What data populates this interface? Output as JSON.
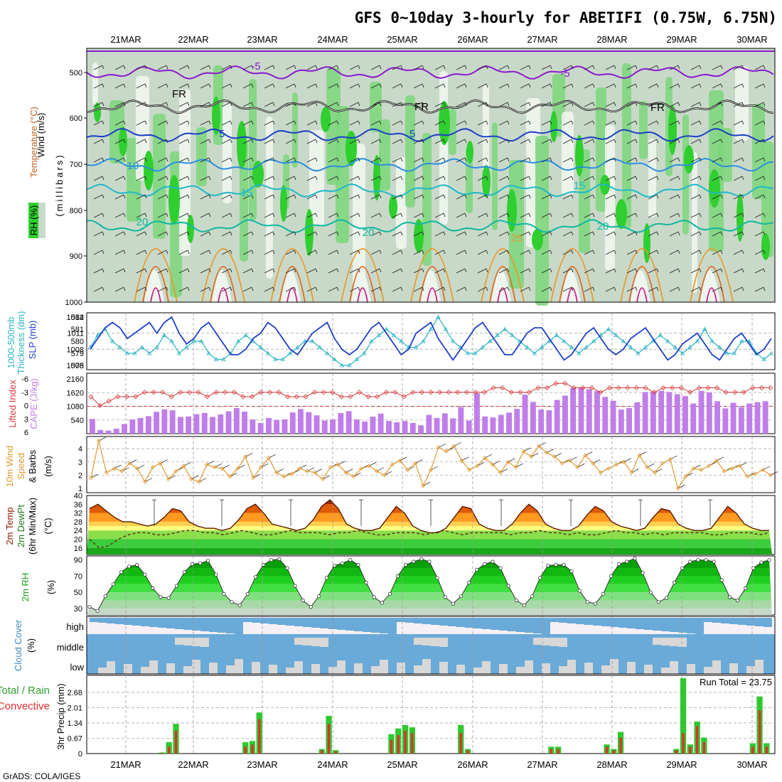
{
  "title": "GFS 0~10day 3-hourly for ABETIFI (0.75W, 6.75N)",
  "footer": "GrADS: COLA/IGES",
  "dates": [
    "21MAR",
    "22MAR",
    "23MAR",
    "24MAR",
    "25MAR",
    "26MAR",
    "27MAR",
    "28MAR",
    "29MAR",
    "30MAR"
  ],
  "colors": {
    "rh_dark": "#2fcf2f",
    "rh_mid": "#7fd67f",
    "rh_light": "#c9d9c9",
    "rh_pale": "#eef5ee",
    "slp": "#1d3fc8",
    "thick": "#2bb5c5",
    "li": "#d43a3a",
    "cape": "#c07ee8",
    "wind10": "#e09a30",
    "temp_dark": "#8a1a00",
    "temp_orange": "#ff7a00",
    "cloud": "#6aaad8",
    "cloud_bg": "#f5f0f5",
    "precip_total": "#2fc82f",
    "precip_conv": "#e03030"
  },
  "panels": {
    "upper": {
      "ylabel_wind": "Wind (m/s)",
      "ylabel_temp": "Temperature (°C)",
      "ylabel_rh": "RH (%)",
      "ylabel_p": "(millibars)",
      "yticks": [
        "500",
        "600",
        "700",
        "800",
        "900",
        "1000"
      ],
      "contour_labels": [
        "-5",
        "-5",
        "FR",
        "FR",
        "FR",
        "5",
        "5",
        "10",
        "15",
        "15",
        "20",
        "20",
        "20",
        "25"
      ]
    },
    "slp": {
      "ylabel_thick": "1000-500mb",
      "ylabel_thick2": "Thickness (dm)",
      "ylabel_slp": "SLP (mb)",
      "yticks_left": [
        "582",
        "581",
        "580",
        "579",
        "578"
      ],
      "yticks_right": [
        "1014",
        "1011",
        "1008",
        "1005"
      ]
    },
    "cape": {
      "ylabel_li": "Lifted Index",
      "ylabel_cape": "CAPE (J/kg)",
      "yticks_left": [
        "-6",
        "-3",
        "0",
        "3",
        "6"
      ],
      "yticks_right": [
        "2160",
        "1620",
        "1080",
        "540"
      ]
    },
    "wind10": {
      "ylabel1": "10m Wind",
      "ylabel2": "Speed",
      "ylabel3": "& Barbs",
      "ylabel4": "(m/s)",
      "yticks": [
        "4",
        "3",
        "2",
        "1"
      ]
    },
    "temp2m": {
      "ylabel1": "2m Temp",
      "ylabel2": "2m DewPt",
      "ylabel3": "(6hr Min/Max)",
      "ylabel4": "(°C)",
      "yticks": [
        "40",
        "36",
        "32",
        "28",
        "24",
        "20",
        "16"
      ]
    },
    "rh2m": {
      "ylabel1": "2m RH",
      "ylabel2": "(%)",
      "yticks": [
        "90",
        "70",
        "50",
        "30"
      ]
    },
    "cloud": {
      "ylabel1": "Cloud Cover",
      "ylabel2": "(%)",
      "levels": [
        "high",
        "middle",
        "low"
      ]
    },
    "precip": {
      "ylabel1": "Total / Rain",
      "ylabel2": "Convective",
      "ylabel3": "3hr Precip (mm)",
      "yticks": [
        "2.68",
        "2.01",
        "1.34",
        "0.67",
        "0"
      ],
      "run_total": "Run Total = 23.75"
    }
  },
  "chart_data": [
    {
      "type": "line",
      "title": "SLP and 1000-500mb thickness",
      "series": [
        {
          "name": "SLP (mb)",
          "values": [
            1008,
            1010,
            1012,
            1013,
            1012,
            1010,
            1011,
            1012,
            1013,
            1011,
            1013,
            1014,
            1011,
            1009,
            1010,
            1012,
            1013,
            1011,
            1009,
            1007,
            1007,
            1008,
            1010,
            1011,
            1013,
            1012,
            1010,
            1008,
            1007,
            1009,
            1011,
            1012,
            1013,
            1010,
            1008,
            1007,
            1008,
            1010,
            1012,
            1013,
            1011,
            1009,
            1007,
            1008,
            1011,
            1012,
            1013,
            1010,
            1008,
            1006,
            1008,
            1010,
            1012,
            1013,
            1011,
            1009,
            1007,
            1007,
            1009,
            1011,
            1012,
            1012,
            1010,
            1008,
            1006,
            1007,
            1009,
            1011,
            1012,
            1010,
            1008,
            1007,
            1008,
            1010,
            1011,
            1012,
            1010,
            1008,
            1006,
            1007,
            1009,
            1010,
            1011,
            1009,
            1007,
            1006,
            1008,
            1010,
            1011,
            1009,
            1007,
            1008,
            1010
          ]
        },
        {
          "name": "Thickness (dm)",
          "values": [
            579.5,
            580.5,
            581,
            580,
            579.5,
            579,
            579,
            579.5,
            579,
            579.5,
            580.5,
            580,
            579,
            579.5,
            580,
            580,
            579,
            578.5,
            578.5,
            579,
            580,
            580.5,
            580,
            579.5,
            579,
            578.5,
            578.5,
            579,
            579.5,
            580,
            580,
            579.5,
            579,
            578.5,
            578,
            578,
            578.5,
            579,
            580,
            580.5,
            581,
            580.5,
            580,
            579.5,
            579.5,
            580,
            581,
            582,
            581,
            580,
            579.5,
            579,
            579,
            579.5,
            580,
            580.5,
            581,
            580.5,
            580,
            579.5,
            579,
            579.5,
            580,
            580.5,
            580,
            579.5,
            579,
            579.5,
            580,
            580.5,
            581,
            580.5,
            580,
            579.5,
            579,
            579.5,
            580,
            580.5,
            580,
            579.5,
            579,
            579.5,
            580,
            581,
            580,
            579.5,
            579,
            579,
            580,
            580,
            579,
            578.5,
            579
          ]
        }
      ]
    },
    {
      "type": "bar",
      "title": "CAPE (J/kg)",
      "values": [
        580,
        150,
        120,
        200,
        380,
        560,
        620,
        690,
        860,
        960,
        920,
        660,
        680,
        770,
        820,
        660,
        760,
        880,
        1010,
        870,
        560,
        420,
        620,
        540,
        560,
        840,
        970,
        850,
        720,
        520,
        560,
        810,
        890,
        560,
        480,
        670,
        790,
        500,
        450,
        500,
        420,
        330,
        740,
        620,
        800,
        600,
        1050,
        520,
        1600,
        680,
        640,
        740,
        830,
        980,
        1540,
        1250,
        950,
        920,
        1330,
        1500,
        1800,
        1830,
        1750,
        1680,
        1450,
        1300,
        950,
        1010,
        1240,
        1640,
        1650,
        1690,
        1640,
        1560,
        1480,
        1190,
        1690,
        1630,
        1280,
        1000,
        1220,
        1050,
        1190,
        1240,
        1280
      ]
    },
    {
      "type": "line",
      "title": "Lifted Index",
      "values": [
        -2,
        0,
        -1,
        -2,
        -2,
        -2,
        -3,
        -3,
        -3,
        -2,
        -3,
        -3,
        -3,
        -2,
        -3,
        -3,
        -3,
        -2,
        -2,
        -3,
        -3,
        -3,
        -2,
        -2,
        -2,
        -3,
        -3,
        -3,
        -2,
        -2,
        -3,
        -2,
        -2,
        -3,
        -3,
        -2,
        -3,
        -3,
        -3,
        -3,
        -3,
        -3,
        -3,
        -3,
        -3,
        -4,
        -4,
        -3,
        -3,
        -3,
        -4,
        -4,
        -5,
        -5,
        -4,
        -4,
        -4,
        -3,
        -4,
        -4,
        -4,
        -4,
        -4,
        -3,
        -4,
        -4,
        -4,
        -3,
        -4,
        -4,
        -4,
        -3,
        -3,
        -3,
        -4,
        -4,
        -4
      ]
    },
    {
      "type": "line",
      "title": "10m Wind Speed (m/s)",
      "values": [
        1.8,
        4.6,
        2.2,
        2.5,
        2.3,
        2.9,
        2.5,
        1.5,
        2.6,
        2.9,
        1.7,
        2.3,
        2.7,
        1.7,
        1.5,
        2.8,
        2.6,
        2.5,
        1.9,
        2.5,
        3.4,
        1.8,
        2.6,
        3.3,
        2.2,
        1.9,
        2.1,
        2.5,
        2.3,
        2.2,
        1.7,
        2.6,
        2.8,
        2.2,
        1.9,
        2.5,
        2.7,
        2.3,
        2.0,
        2.8,
        3.1,
        2.4,
        2.9,
        1.2,
        2.4,
        4.1,
        3.8,
        4.2,
        3.1,
        2.4,
        2.7,
        3.3,
        2.8,
        2.2,
        3.0,
        2.6,
        3.8,
        3.4,
        4.2,
        3.7,
        3.4,
        2.9,
        3.1,
        2.6,
        3.5,
        2.9,
        2.2,
        2.5,
        2.8,
        3.0,
        2.2,
        3.5,
        2.6,
        2.2,
        2.9,
        3.2,
        1.0,
        1.9,
        2.5,
        2.4,
        2.7,
        3.1,
        2.3,
        2.5,
        2.7,
        1.9,
        2.1,
        2.4,
        2.0
      ]
    },
    {
      "type": "area",
      "title": "2m Temperature (°C)",
      "values": [
        34,
        36,
        33,
        30,
        28,
        28,
        27,
        26,
        27,
        30,
        34,
        33,
        28,
        26,
        25,
        25,
        24,
        25,
        29,
        34,
        36,
        32,
        27,
        26,
        25,
        24,
        25,
        29,
        35,
        38,
        34,
        27,
        25,
        24,
        24,
        25,
        30,
        35,
        32,
        26,
        24,
        23,
        23,
        25,
        30,
        35,
        34,
        27,
        25,
        24,
        24,
        27,
        32,
        36,
        33,
        27,
        25,
        24,
        24,
        26,
        31,
        35,
        33,
        28,
        26,
        25,
        24,
        25,
        30,
        34,
        33,
        27,
        25,
        24,
        24,
        25,
        30,
        35,
        32,
        27,
        25,
        24,
        24
      ]
    },
    {
      "type": "line",
      "title": "2m Dew Point (°C)",
      "values": [
        20,
        16,
        17,
        20,
        22,
        23,
        23,
        22,
        22,
        23,
        24,
        24,
        23,
        23,
        22,
        23,
        24,
        23,
        22,
        22,
        23,
        24,
        23,
        23,
        23,
        22,
        23,
        23,
        24,
        23,
        22,
        22,
        23,
        23,
        23,
        22,
        23,
        24,
        23,
        22,
        23,
        23,
        23,
        23,
        22,
        23,
        23,
        24,
        23,
        23,
        22,
        23,
        22,
        22,
        23,
        24,
        23,
        23,
        22,
        23,
        22,
        23,
        23,
        23,
        23,
        22,
        22,
        23,
        23,
        23,
        22,
        23
      ]
    },
    {
      "type": "area",
      "title": "2m RH (%)",
      "values": [
        32,
        27,
        45,
        60,
        75,
        82,
        84,
        72,
        55,
        44,
        43,
        58,
        75,
        85,
        86,
        89,
        72,
        48,
        38,
        34,
        48,
        69,
        84,
        90,
        91,
        80,
        58,
        40,
        32,
        45,
        68,
        83,
        86,
        90,
        84,
        62,
        44,
        37,
        48,
        70,
        84,
        88,
        91,
        88,
        68,
        44,
        36,
        45,
        62,
        78,
        85,
        88,
        80,
        58,
        40,
        34,
        45,
        68,
        83,
        84,
        84,
        76,
        52,
        38,
        36,
        48,
        70,
        85,
        88,
        92,
        74,
        50,
        38,
        43,
        62,
        80,
        88,
        90,
        90,
        88,
        65,
        44,
        40,
        55,
        80,
        87,
        90
      ]
    },
    {
      "type": "bar",
      "title": "3hr Precip (mm)",
      "series": [
        {
          "name": "Total",
          "values": [
            0,
            0,
            0,
            0,
            0,
            0,
            0,
            0,
            0,
            0,
            0.05,
            0.5,
            1.3,
            0,
            0,
            0,
            0,
            0,
            0,
            0,
            0,
            0,
            0.5,
            0.55,
            1.8,
            0,
            0,
            0,
            0,
            0,
            0,
            0,
            0,
            0.2,
            1.65,
            0.15,
            0,
            0,
            0,
            0,
            0,
            0,
            0,
            0.85,
            1.1,
            1.25,
            1.15,
            0,
            0,
            0,
            0,
            0,
            0,
            1.25,
            0.2,
            0,
            0,
            0,
            0,
            0,
            0,
            0,
            0,
            0,
            0,
            0,
            0.3,
            0.3,
            0,
            0,
            0,
            0,
            0,
            0,
            0.4,
            0.2,
            0.95,
            0,
            0,
            0,
            0,
            0,
            0,
            0,
            0.2,
            3.3,
            0.4,
            1.4,
            0.7,
            0,
            0,
            0,
            0,
            0,
            0,
            0.45,
            2.5,
            0.45
          ]
        },
        {
          "name": "Convective",
          "values": [
            0,
            0,
            0,
            0,
            0,
            0,
            0,
            0,
            0,
            0,
            0.03,
            0.3,
            1.0,
            0,
            0,
            0,
            0,
            0,
            0,
            0,
            0,
            0,
            0.3,
            0.4,
            1.5,
            0,
            0,
            0,
            0,
            0,
            0,
            0,
            0,
            0.15,
            1.3,
            0.1,
            0,
            0,
            0,
            0,
            0,
            0,
            0,
            0.6,
            0.8,
            1.0,
            0.9,
            0,
            0,
            0,
            0,
            0,
            0,
            0.9,
            0.15,
            0,
            0,
            0,
            0,
            0,
            0,
            0,
            0,
            0,
            0,
            0,
            0.2,
            0.2,
            0,
            0,
            0,
            0,
            0,
            0,
            0.3,
            0.15,
            0.7,
            0,
            0,
            0,
            0,
            0,
            0,
            0,
            0.15,
            0.9,
            0.3,
            1.2,
            0.5,
            0,
            0,
            0,
            0,
            0,
            0,
            0.3,
            1.9,
            0.3
          ]
        }
      ]
    }
  ]
}
